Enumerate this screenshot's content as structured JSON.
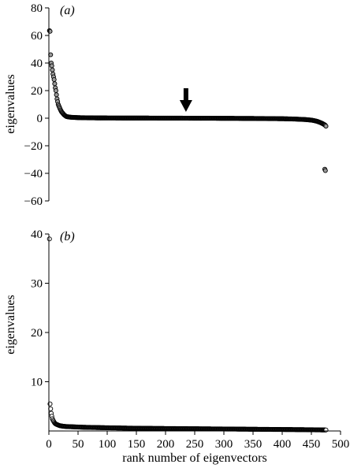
{
  "chart_data": [
    {
      "type": "scatter",
      "panel_label": "(a)",
      "ylabel": "eigenvalues",
      "xlabel": "",
      "xlim": [
        0,
        500
      ],
      "ylim": [
        -60,
        80
      ],
      "yticks": [
        80,
        60,
        40,
        20,
        0,
        -20,
        -40,
        -60
      ],
      "yticks_text": [
        "80",
        "60",
        "40",
        "20",
        "0",
        "−20",
        "−40",
        "−60"
      ],
      "annotation": "arrow-down at x=235",
      "arrow_x": 235,
      "series": [
        {
          "x": [
            1,
            2,
            3,
            4,
            5,
            6,
            7,
            8,
            9,
            10,
            11,
            12,
            13,
            14,
            15,
            16,
            17,
            18,
            20,
            22,
            24,
            26,
            28,
            30,
            35,
            40,
            50,
            60,
            80,
            100,
            150,
            200,
            235,
            300,
            350,
            400,
            420,
            440,
            450,
            455,
            460,
            463,
            466,
            469,
            472,
            474,
            475
          ],
          "y": [
            63.5,
            63,
            46,
            40,
            38,
            35,
            32,
            30,
            28,
            25,
            22,
            20,
            17,
            14,
            12,
            10,
            9,
            8,
            6,
            4.5,
            3.5,
            2.5,
            1.8,
            1.2,
            0.8,
            0.6,
            0.4,
            0.3,
            0.2,
            0.15,
            0.1,
            0.05,
            0,
            -0.1,
            -0.2,
            -0.4,
            -0.6,
            -1.0,
            -1.4,
            -1.8,
            -2.3,
            -2.8,
            -3.3,
            -3.9,
            -4.6,
            -5.2,
            -5.8
          ]
        },
        {
          "x": [
            473,
            474
          ],
          "y": [
            -37,
            -38
          ]
        }
      ]
    },
    {
      "type": "scatter",
      "panel_label": "(b)",
      "ylabel": "eigenvalues",
      "xlabel": "rank number of eigenvectors",
      "xlim": [
        0,
        500
      ],
      "ylim": [
        0,
        40
      ],
      "yticks": [
        40,
        30,
        20,
        10
      ],
      "yticks_text": [
        "40",
        "30",
        "20",
        "10"
      ],
      "xticks": [
        0,
        50,
        100,
        150,
        200,
        250,
        300,
        350,
        400,
        450,
        500
      ],
      "series": [
        {
          "x": [
            1,
            2,
            3,
            4,
            5,
            6,
            7,
            8,
            9,
            10,
            12,
            14,
            16,
            18,
            20,
            25,
            30,
            40,
            50,
            60,
            80,
            100,
            150,
            200,
            250,
            300,
            350,
            400,
            450,
            475
          ],
          "y": [
            39,
            5.5,
            4.5,
            3.6,
            3,
            2.5,
            2.2,
            2,
            1.8,
            1.6,
            1.4,
            1.3,
            1.2,
            1.1,
            1.05,
            0.95,
            0.9,
            0.85,
            0.8,
            0.75,
            0.7,
            0.65,
            0.55,
            0.5,
            0.45,
            0.4,
            0.35,
            0.3,
            0.25,
            0.2
          ]
        }
      ]
    }
  ]
}
